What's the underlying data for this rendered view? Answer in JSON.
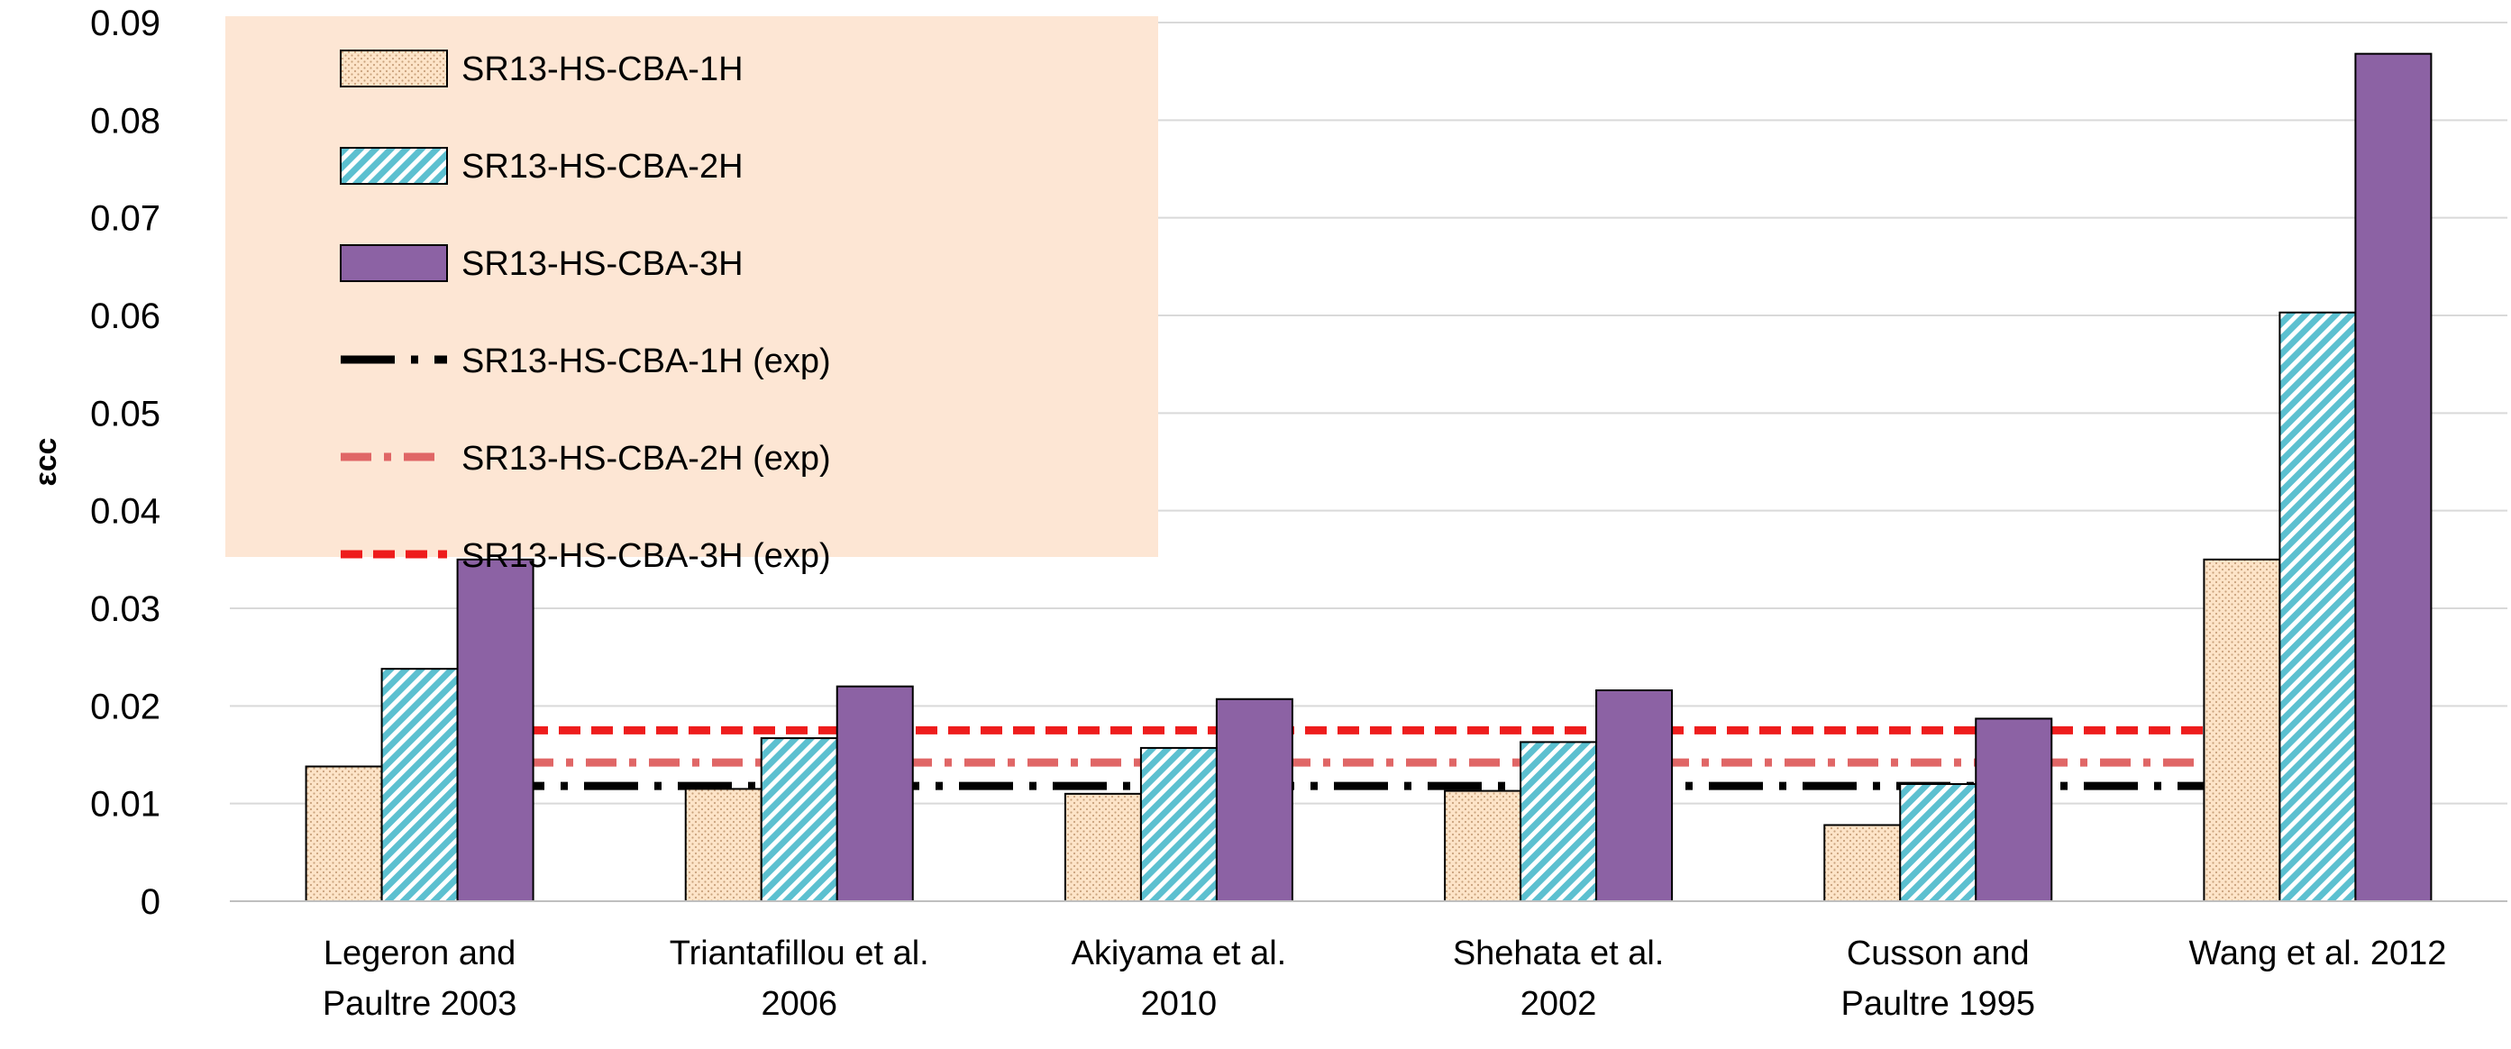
{
  "chart_data": {
    "type": "bar",
    "title": "",
    "xlabel": "",
    "ylabel": "εcc",
    "ylim": [
      0,
      0.09
    ],
    "yticks": [
      "0",
      "0.01",
      "0.02",
      "0.03",
      "0.04",
      "0.05",
      "0.06",
      "0.07",
      "0.08",
      "0.09"
    ],
    "ytick_values": [
      0,
      0.01,
      0.02,
      0.03,
      0.04,
      0.05,
      0.06,
      0.07,
      0.08,
      0.09
    ],
    "grid": true,
    "legend_position": "top-left",
    "categories": [
      [
        "Legeron and",
        "Paultre 2003"
      ],
      [
        "Triantafillou et al.",
        "2006"
      ],
      [
        "Akiyama et al.",
        "2010"
      ],
      [
        "Shehata et al.",
        "2002"
      ],
      [
        "Cusson and",
        "Paultre 1995"
      ],
      [
        "Wang et al. 2012"
      ]
    ],
    "series": [
      {
        "name": "SR13-HS-CBA-1H",
        "values": [
          0.0138,
          0.0115,
          0.011,
          0.0113,
          0.0078,
          0.035
        ],
        "color": "#fde4c8",
        "pattern": "dots"
      },
      {
        "name": "SR13-HS-CBA-2H",
        "values": [
          0.0238,
          0.0167,
          0.0157,
          0.0163,
          0.012,
          0.0603
        ],
        "color": "#8fd4de",
        "pattern": "hatch"
      },
      {
        "name": "SR13-HS-CBA-3H",
        "values": [
          0.035,
          0.022,
          0.0207,
          0.0216,
          0.0187,
          0.0868
        ],
        "color": "#8c62a4",
        "pattern": "solid"
      }
    ],
    "reference_lines": [
      {
        "name": "SR13-HS-CBA-1H (exp)",
        "value": 0.0118,
        "color": "#000000",
        "style": "long-dash-dot"
      },
      {
        "name": "SR13-HS-CBA-2H (exp)",
        "value": 0.0142,
        "color": "#e06666",
        "style": "dash-dot"
      },
      {
        "name": "SR13-HS-CBA-3H (exp)",
        "value": 0.0175,
        "color": "#ee1c1c",
        "style": "dash"
      }
    ],
    "legend_background": "#fde6d4"
  }
}
